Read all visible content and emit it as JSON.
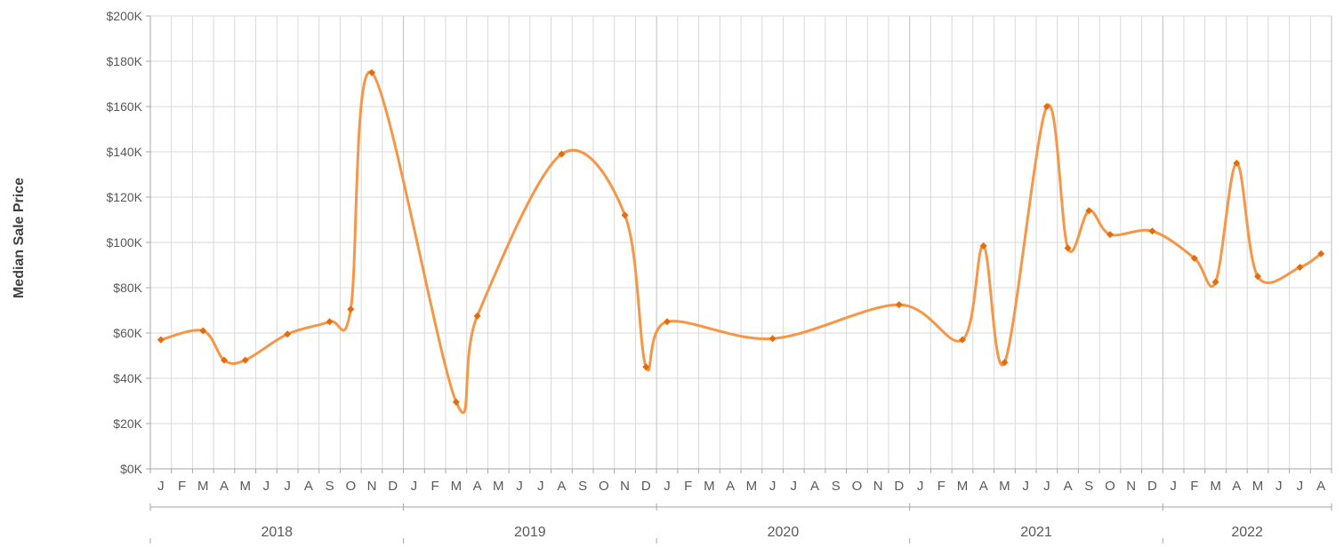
{
  "chart_data": {
    "type": "line",
    "title": "",
    "xlabel": "",
    "ylabel": "Median Sale Price",
    "ylim": [
      0,
      200000
    ],
    "y_ticks": [
      "$0K",
      "$20K",
      "$40K",
      "$60K",
      "$80K",
      "$100K",
      "$120K",
      "$140K",
      "$160K",
      "$180K",
      "$200K"
    ],
    "x_month_labels": [
      "J",
      "F",
      "M",
      "A",
      "M",
      "J",
      "J",
      "A",
      "S",
      "O",
      "N",
      "D",
      "J",
      "F",
      "M",
      "A",
      "M",
      "J",
      "J",
      "A",
      "S",
      "O",
      "N",
      "D",
      "J",
      "F",
      "M",
      "A",
      "M",
      "J",
      "J",
      "A",
      "S",
      "O",
      "N",
      "D",
      "J",
      "F",
      "M",
      "A",
      "M",
      "J",
      "J",
      "A",
      "S",
      "O",
      "N",
      "D",
      "J",
      "F",
      "M",
      "A",
      "M",
      "J",
      "J",
      "A"
    ],
    "x_year_labels": [
      {
        "label": "2018",
        "start": 0,
        "span": 12
      },
      {
        "label": "2019",
        "start": 12,
        "span": 12
      },
      {
        "label": "2020",
        "start": 24,
        "span": 12
      },
      {
        "label": "2021",
        "start": 36,
        "span": 12
      },
      {
        "label": "2022",
        "start": 48,
        "span": 8
      }
    ],
    "grid": true,
    "line_color": "#F79646",
    "marker_color": "#E46C0A",
    "series": [
      {
        "points": [
          {
            "x": "2018-01",
            "y": 57000
          },
          {
            "x": "2018-03",
            "y": 61000
          },
          {
            "x": "2018-04",
            "y": 48000
          },
          {
            "x": "2018-05",
            "y": 48000
          },
          {
            "x": "2018-07",
            "y": 59500
          },
          {
            "x": "2018-09",
            "y": 65000
          },
          {
            "x": "2018-10",
            "y": 70500
          },
          {
            "x": "2018-11",
            "y": 175000
          },
          {
            "x": "2019-03",
            "y": 29500
          },
          {
            "x": "2019-04",
            "y": 67500
          },
          {
            "x": "2019-08",
            "y": 139000
          },
          {
            "x": "2019-11",
            "y": 112000
          },
          {
            "x": "2019-12",
            "y": 45000
          },
          {
            "x": "2020-01",
            "y": 65000
          },
          {
            "x": "2020-06",
            "y": 57500
          },
          {
            "x": "2020-12",
            "y": 72500
          },
          {
            "x": "2021-03",
            "y": 57000
          },
          {
            "x": "2021-04",
            "y": 98500
          },
          {
            "x": "2021-05",
            "y": 47000
          },
          {
            "x": "2021-07",
            "y": 160000
          },
          {
            "x": "2021-08",
            "y": 97500
          },
          {
            "x": "2021-09",
            "y": 114000
          },
          {
            "x": "2021-10",
            "y": 103500
          },
          {
            "x": "2021-12",
            "y": 105000
          },
          {
            "x": "2022-02",
            "y": 93000
          },
          {
            "x": "2022-03",
            "y": 82500
          },
          {
            "x": "2022-04",
            "y": 135000
          },
          {
            "x": "2022-05",
            "y": 85000
          },
          {
            "x": "2022-07",
            "y": 89000
          },
          {
            "x": "2022-08",
            "y": 95000
          }
        ]
      }
    ]
  }
}
